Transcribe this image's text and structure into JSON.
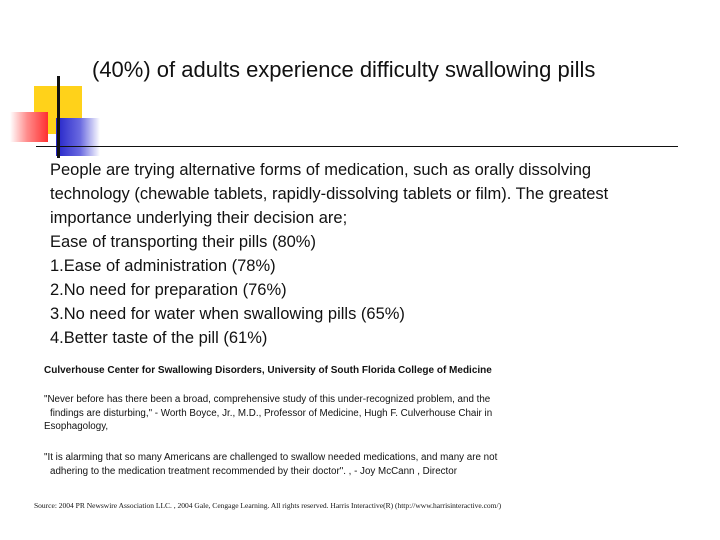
{
  "slide": {
    "title": "(40%) of adults experience difficulty swallowing pills",
    "body_lines": [
      "People are trying alternative forms of medication, such as orally dissolving",
      "technology (chewable tablets, rapidly-dissolving tablets or film). The greatest",
      "importance underlying their decision are;",
      "Ease of transporting their pills (80%)",
      "1.Ease of administration (78%)",
      "2.No need for preparation (76%)",
      "3.No need for water when swallowing pills (65%)",
      "4.Better taste of the pill (61%)"
    ],
    "section_heading": "Culverhouse Center for Swallowing Disorders, University of South Florida College of Medicine",
    "quote1_lines": [
      "\"Never before has there been a broad, comprehensive study of this under-recognized problem, and the",
      "findings are disturbing,\" - Worth Boyce, Jr., M.D., Professor of Medicine, Hugh F. Culverhouse Chair in",
      "Esophagology,"
    ],
    "quote2_lines": [
      "\"It is alarming that so many Americans are challenged to swallow needed medications, and many are not",
      "adhering to the medication treatment recommended by their doctor\". , - Joy McCann , Director"
    ],
    "source": "Source: 2004 PR Newswire Association LLC. , 2004 Gale, Cengage Learning. All rights reserved. Harris Interactive(R) (http://www.harrisinteractive.com/)"
  },
  "colors": {
    "ornament_yellow": "#ffd21a",
    "ornament_red": "#ff3030",
    "ornament_blue": "#2323c8",
    "text": "#111111"
  }
}
